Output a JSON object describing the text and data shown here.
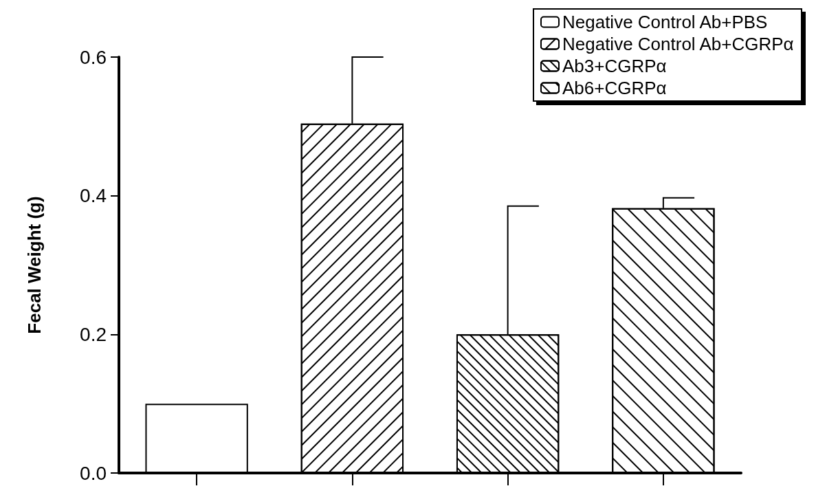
{
  "chart_data": {
    "type": "bar",
    "ylabel": "Fecal Weight (g)",
    "categories": [
      null,
      null,
      null,
      null
    ],
    "series": [
      {
        "name": "Negative Control Ab+PBS",
        "color": "#ffffff",
        "values": [
          0.1,
          null,
          null,
          null
        ],
        "errors": [
          null,
          null,
          null,
          null
        ]
      },
      {
        "name": "Negative Control Ab+CGRPα",
        "color": "#ffffff",
        "values": [
          null,
          0.504,
          null,
          null
        ],
        "errors": [
          null,
          [
            0.504,
            0.6
          ],
          null,
          null
        ]
      },
      {
        "name": "Ab3+CGRPα",
        "color": "#ffffff",
        "values": [
          null,
          null,
          0.2,
          null
        ],
        "errors": [
          null,
          null,
          [
            0.2,
            0.385
          ],
          null
        ]
      },
      {
        "name": "Ab6+CGRPα",
        "color": "#ffffff",
        "values": [
          null,
          null,
          null,
          0.382
        ],
        "errors": [
          null,
          null,
          null,
          [
            0.382,
            0.397
          ]
        ]
      }
    ],
    "ylim": [
      0,
      0.6
    ],
    "yticks": [
      {
        "value": 0,
        "label": "0.0"
      },
      {
        "value": 0.2,
        "label": "0.2"
      },
      {
        "value": 0.4,
        "label": "0.4"
      },
      {
        "value": 0.6,
        "label": "0.6"
      }
    ],
    "grid": false,
    "legend": "top right"
  }
}
